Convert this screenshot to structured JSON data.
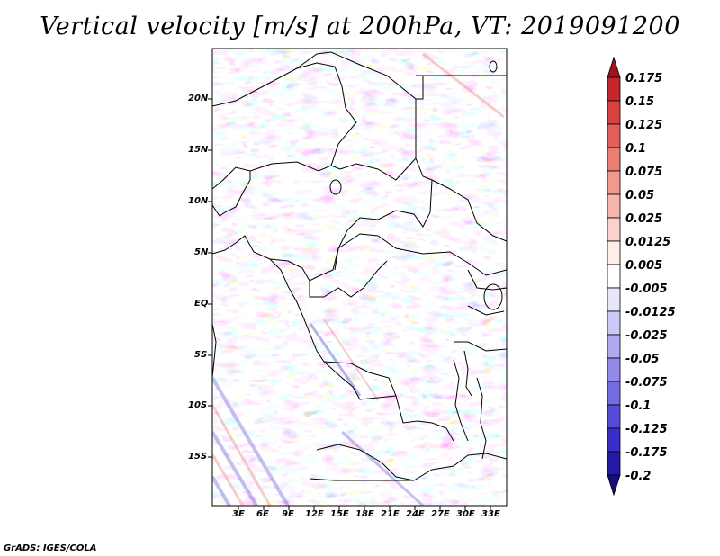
{
  "title": "Vertical velocity [m/s] at 200hPa, VT: 2019091200",
  "credit": "GrADS: IGES/COLA",
  "map": {
    "region": "Central Africa",
    "field": "Vertical velocity",
    "units": "m/s",
    "level": "200hPa",
    "valid_time": "2019091200",
    "lon_range": [
      0,
      34
    ],
    "lat_range": [
      -20,
      24
    ],
    "lat_labels": [
      "20N",
      "15N",
      "10N",
      "5N",
      "EQ",
      "5S",
      "10S",
      "15S"
    ],
    "lon_labels": [
      "3E",
      "6E",
      "9E",
      "12E",
      "15E",
      "18E",
      "21E",
      "24E",
      "27E",
      "30E",
      "33E"
    ]
  },
  "colorbar": {
    "labels": [
      "0.175",
      "0.15",
      "0.125",
      "0.1",
      "0.075",
      "0.05",
      "0.025",
      "0.0125",
      "0.005",
      "-0.005",
      "-0.0125",
      "-0.025",
      "-0.05",
      "-0.075",
      "-0.1",
      "-0.125",
      "-0.175",
      "-0.2"
    ],
    "colors": [
      "#a3141a",
      "#c3262b",
      "#d8423f",
      "#e3605a",
      "#ea7d74",
      "#f09a8f",
      "#f5b7ad",
      "#f9d3cb",
      "#fdeeea",
      "#ffffff",
      "#e8e6fb",
      "#cdc9f6",
      "#afa9ef",
      "#918ae7",
      "#736be0",
      "#554bd8",
      "#3a2ec9",
      "#241aa6",
      "#170e7a"
    ]
  }
}
